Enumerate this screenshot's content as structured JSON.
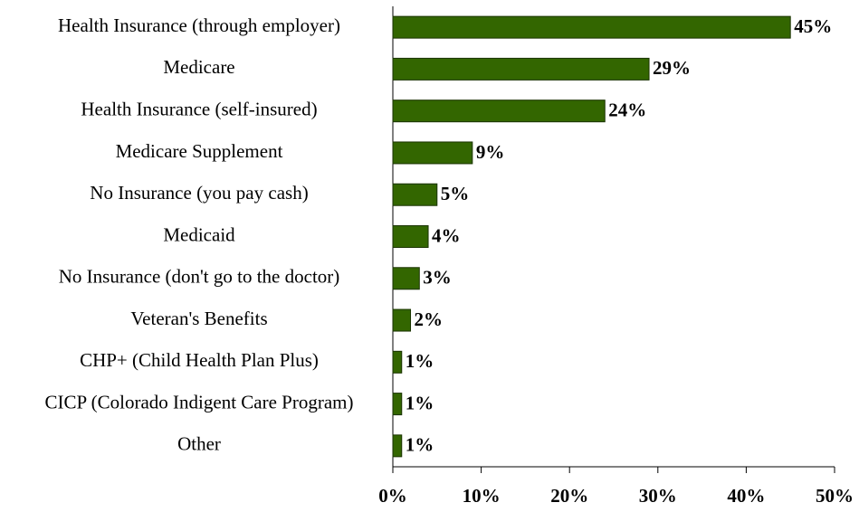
{
  "chart_data": {
    "type": "hbar",
    "categories": [
      "Health Insurance (through employer)",
      "Medicare",
      "Health Insurance (self-insured)",
      "Medicare Supplement",
      "No Insurance (you pay cash)",
      "Medicaid",
      "No Insurance (don't go to the doctor)",
      "Veteran's Benefits",
      "CHP+ (Child Health Plan Plus)",
      "CICP (Colorado Indigent Care Program)",
      "Other"
    ],
    "values": [
      45,
      29,
      24,
      9,
      5,
      4,
      3,
      2,
      1,
      1,
      1
    ],
    "value_labels": [
      "45%",
      "29%",
      "24%",
      "9%",
      "5%",
      "4%",
      "3%",
      "2%",
      "1%",
      "1%",
      "1%"
    ],
    "color": "#336600",
    "xlim": [
      0,
      50
    ],
    "xticks": [
      {
        "value": 0,
        "label": "0%"
      },
      {
        "value": 10,
        "label": "10%"
      },
      {
        "value": 20,
        "label": "20%"
      },
      {
        "value": 30,
        "label": "30%"
      },
      {
        "value": 40,
        "label": "40%"
      },
      {
        "value": 50,
        "label": "50%"
      }
    ]
  }
}
